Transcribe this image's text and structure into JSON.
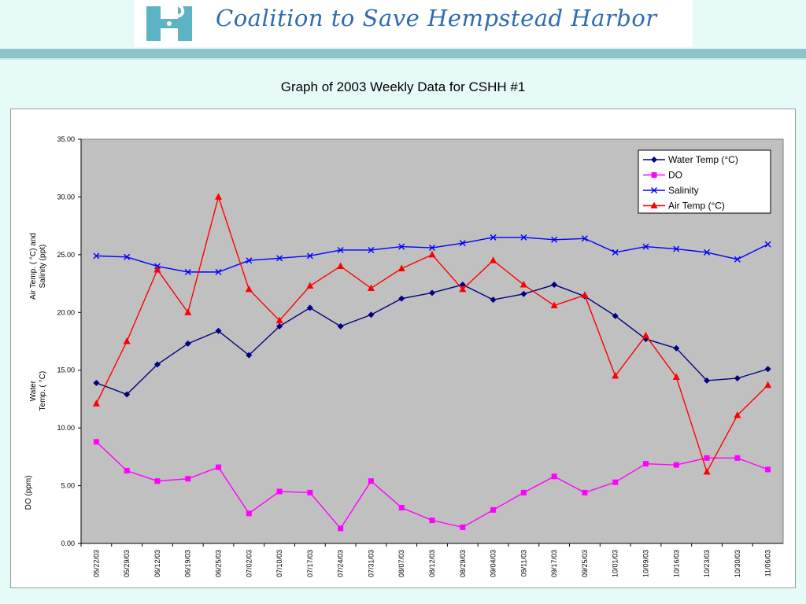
{
  "header": {
    "org_name": "Coalition to Save Hempstead Harbor",
    "logo_icon": "hh-logo-icon",
    "logo_color": "#5bb3c4",
    "rule_color": "#8cc4c8"
  },
  "page": {
    "title": "Graph of 2003 Weekly Data for CSHH #1"
  },
  "chart_data": {
    "type": "line",
    "title": "",
    "ylim": [
      0,
      35
    ],
    "yticks": [
      "0.00",
      "5.00",
      "10.00",
      "15.00",
      "20.00",
      "25.00",
      "30.00",
      "35.00"
    ],
    "ylabels": [
      "Air Temp. ( °C) and",
      "Salinity (ppt)",
      "Water",
      "Temp. ( °C)",
      "DO (ppm)"
    ],
    "categories": [
      "05/22/03",
      "05/29/03",
      "06/12/03",
      "06/19/03",
      "06/25/03",
      "07/02/03",
      "07/10/03",
      "07/17/03",
      "07/24/03",
      "07/31/03",
      "08/07/03",
      "08/12/03",
      "08/29/03",
      "09/04/03",
      "09/11/03",
      "09/17/03",
      "09/25/03",
      "10/01/03",
      "10/09/03",
      "10/16/03",
      "10/23/03",
      "10/30/03",
      "11/06/03"
    ],
    "plot_background": "#c0c0c0",
    "grid": false,
    "legend_position": "top-right",
    "series": [
      {
        "name": "Water Temp (°C)",
        "color": "#000080",
        "marker": "diamond",
        "values": [
          13.9,
          12.9,
          15.5,
          17.3,
          18.4,
          16.3,
          18.8,
          20.4,
          18.8,
          19.8,
          21.2,
          21.7,
          22.4,
          21.1,
          21.6,
          22.4,
          21.4,
          19.7,
          17.7,
          16.9,
          14.1,
          14.3,
          15.1
        ]
      },
      {
        "name": "DO",
        "color": "#ff00ff",
        "marker": "square",
        "values": [
          8.8,
          6.3,
          5.4,
          5.6,
          6.6,
          2.6,
          4.5,
          4.4,
          1.3,
          5.4,
          3.1,
          2.0,
          1.4,
          2.9,
          4.4,
          5.8,
          4.4,
          5.3,
          6.9,
          6.8,
          7.4,
          7.4,
          6.4
        ]
      },
      {
        "name": "Salinity",
        "color": "#0000ff",
        "marker": "x",
        "values": [
          24.9,
          24.8,
          24.0,
          23.5,
          23.5,
          24.5,
          24.7,
          24.9,
          25.4,
          25.4,
          25.7,
          25.6,
          26.0,
          26.5,
          26.5,
          26.3,
          26.4,
          25.2,
          25.7,
          25.5,
          25.2,
          24.6,
          25.9
        ]
      },
      {
        "name": "Air Temp (°C)",
        "color": "#ff0000",
        "marker": "triangle",
        "values": [
          12.1,
          17.5,
          23.7,
          20.0,
          30.0,
          22.0,
          19.3,
          22.3,
          24.0,
          22.1,
          23.8,
          25.0,
          22.0,
          24.5,
          22.4,
          20.6,
          21.5,
          14.5,
          18.0,
          14.4,
          6.2,
          11.1,
          13.7
        ]
      }
    ]
  }
}
